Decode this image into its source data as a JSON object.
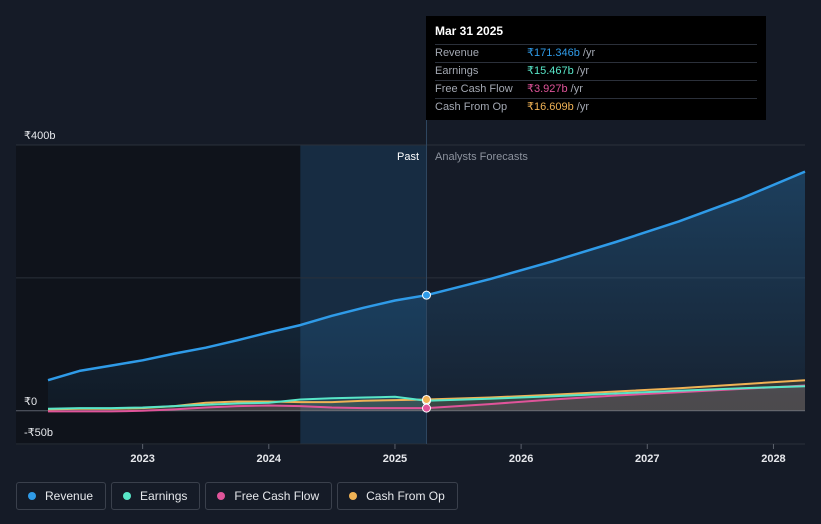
{
  "tooltip": {
    "date": "Mar 31 2025",
    "rows": [
      {
        "label": "Revenue",
        "value": "₹171.346b",
        "unit": "/yr",
        "color": "#2f9be8"
      },
      {
        "label": "Earnings",
        "value": "₹15.467b",
        "unit": "/yr",
        "color": "#58e6c8"
      },
      {
        "label": "Free Cash Flow",
        "value": "₹3.927b",
        "unit": "/yr",
        "color": "#e0549a"
      },
      {
        "label": "Cash From Op",
        "value": "₹16.609b",
        "unit": "/yr",
        "color": "#f0b255"
      }
    ]
  },
  "regions": {
    "past": "Past",
    "forecast": "Analysts Forecasts"
  },
  "legend": [
    {
      "label": "Revenue",
      "color": "#2f9be8"
    },
    {
      "label": "Earnings",
      "color": "#58e6c8"
    },
    {
      "label": "Free Cash Flow",
      "color": "#e0549a"
    },
    {
      "label": "Cash From Op",
      "color": "#f0b255"
    }
  ],
  "chart_data": {
    "type": "line",
    "title": "",
    "xlabel": "",
    "ylabel": "",
    "x_ticks": [
      2023,
      2024,
      2025,
      2026,
      2027,
      2028
    ],
    "y_ticks": [
      {
        "value": 400,
        "label": "₹400b"
      },
      {
        "value": 0,
        "label": "₹0"
      },
      {
        "value": -50,
        "label": "-₹50b"
      }
    ],
    "xlim": [
      2022.25,
      2028.25
    ],
    "ylim": [
      -50,
      400
    ],
    "gridlines": [
      400,
      200,
      0
    ],
    "past_shade_start": 2024.25,
    "divider_x": 2025.25,
    "highlight_x": 2025.25,
    "series": [
      {
        "name": "Revenue",
        "color": "#2f9be8",
        "x": [
          2022.25,
          2022.5,
          2022.75,
          2023.0,
          2023.25,
          2023.5,
          2023.75,
          2024.0,
          2024.25,
          2024.5,
          2024.75,
          2025.0,
          2025.25,
          2025.75,
          2026.25,
          2026.75,
          2027.25,
          2027.75,
          2028.25
        ],
        "y": [
          46,
          60,
          68,
          76,
          86,
          95,
          106,
          118,
          129,
          143,
          155,
          166,
          174,
          198,
          225,
          254,
          285,
          320,
          360
        ]
      },
      {
        "name": "Earnings",
        "color": "#58e6c8",
        "x": [
          2022.25,
          2022.5,
          2022.75,
          2023.0,
          2023.25,
          2023.5,
          2023.75,
          2024.0,
          2024.25,
          2024.5,
          2024.75,
          2025.0,
          2025.25,
          2025.75,
          2026.25,
          2026.75,
          2027.25,
          2027.75,
          2028.25
        ],
        "y": [
          3,
          4,
          4,
          5,
          7,
          9,
          11,
          12,
          17,
          19,
          20,
          21,
          15,
          18,
          22,
          26,
          30,
          34,
          37
        ]
      },
      {
        "name": "Free Cash Flow",
        "color": "#e0549a",
        "x": [
          2022.25,
          2022.5,
          2022.75,
          2023.0,
          2023.25,
          2023.5,
          2023.75,
          2024.0,
          2024.25,
          2024.5,
          2024.75,
          2025.0,
          2025.25,
          2025.75,
          2026.25,
          2026.75,
          2027.25,
          2027.75,
          2028.25
        ],
        "y": [
          -1,
          -1,
          -1,
          0,
          2,
          5,
          7,
          8,
          7,
          5,
          4,
          4,
          4,
          10,
          17,
          23,
          28,
          33,
          38
        ]
      },
      {
        "name": "Cash From Op",
        "color": "#f0b255",
        "x": [
          2022.25,
          2022.5,
          2022.75,
          2023.0,
          2023.25,
          2023.5,
          2023.75,
          2024.0,
          2024.25,
          2024.5,
          2024.75,
          2025.0,
          2025.25,
          2025.75,
          2026.25,
          2026.75,
          2027.25,
          2027.75,
          2028.25
        ],
        "y": [
          2,
          3,
          3,
          4,
          7,
          12,
          14,
          14,
          13,
          13,
          15,
          16,
          17,
          20,
          24,
          29,
          34,
          40,
          46
        ]
      }
    ]
  }
}
